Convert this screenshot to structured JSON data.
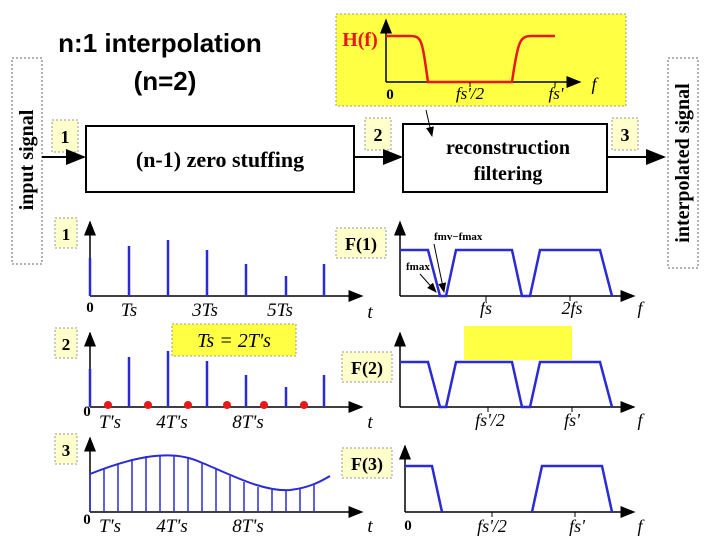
{
  "title": {
    "line1": "n:1 interpolation",
    "line2": "(n=2)"
  },
  "side_labels": {
    "input": "input signal",
    "output": "interpolated signal"
  },
  "blocks": {
    "zero_stuffing": "(n-1) zero stuffing",
    "filter_line1": "reconstruction",
    "filter_line2": "filtering"
  },
  "step_labels": [
    "1",
    "2",
    "3"
  ],
  "filter_response": {
    "label": "H(f)",
    "tick_0": "0",
    "tick_half": "fs'/2",
    "tick_fs": "fs'",
    "axis": "f"
  },
  "time_axes": {
    "panel1": {
      "zero": "0",
      "t1": "Ts",
      "t2": "3Ts",
      "t3": "5Ts",
      "axis": "t"
    },
    "panel2": {
      "zero": "0",
      "t1": "T's",
      "t2": "4T's",
      "t3": "8T's",
      "axis": "t"
    },
    "panel3": {
      "zero": "0",
      "t1": "T's",
      "t2": "4T's",
      "t3": "8T's",
      "axis": "t"
    }
  },
  "relation": "Ts = 2T's",
  "spectra": {
    "f1": {
      "label": "F(1)",
      "fmax": "fmax",
      "fmv_fmax": "fmv−fmax",
      "tick1": "fs",
      "tick2": "2fs",
      "axis": "f"
    },
    "f2": {
      "label": "F(2)",
      "tick1": "fs'/2",
      "tick2": "fs'",
      "axis": "f"
    },
    "f3": {
      "label": "F(3)",
      "zero": "0",
      "tick1": "fs'/2",
      "tick2": "fs'",
      "axis": "f"
    }
  },
  "colors": {
    "highlight": "#ffff44",
    "signal": "#2a2ad6",
    "filter": "#e81818",
    "sample_dot": "#e81818",
    "label_box": "#ffffcc"
  }
}
